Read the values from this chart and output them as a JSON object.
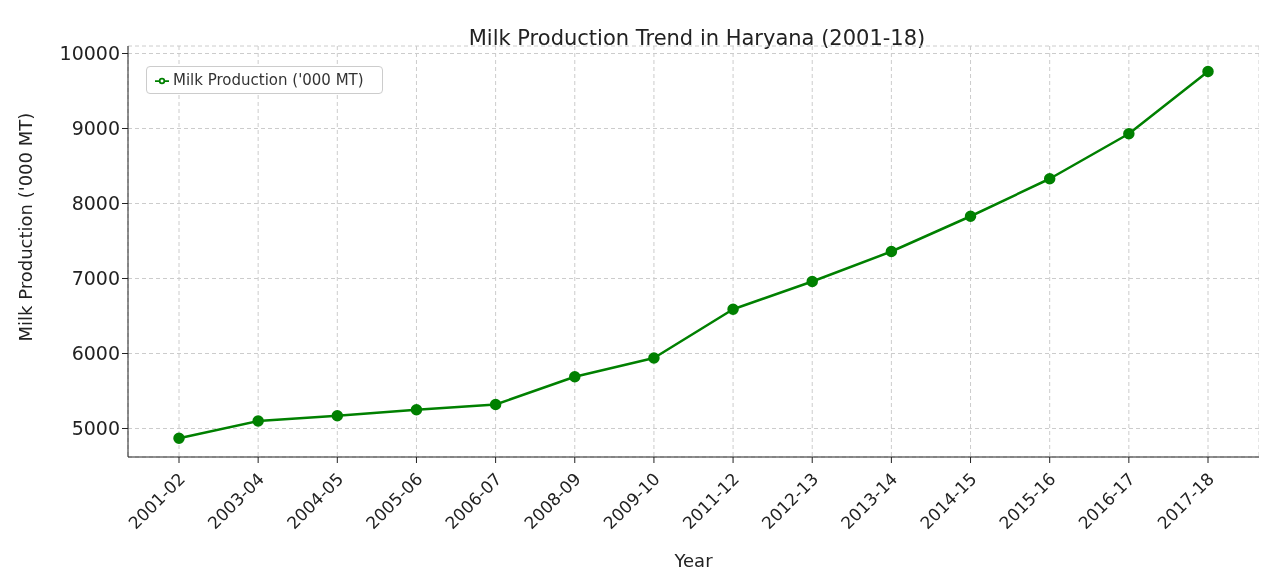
{
  "chart_data": {
    "type": "line",
    "title": "Milk Production Trend in Haryana (2001-18)",
    "xlabel": "Year",
    "ylabel": "Milk Production ('000 MT)",
    "categories": [
      "2001-02",
      "2003-04",
      "2004-05",
      "2005-06",
      "2006-07",
      "2008-09",
      "2009-10",
      "2011-12",
      "2012-13",
      "2013-14",
      "2014-15",
      "2015-16",
      "2016-17",
      "2017-18"
    ],
    "series": [
      {
        "name": "Milk Production ('000 MT)",
        "color": "#008000",
        "values": [
          4870,
          5100,
          5170,
          5250,
          5320,
          5690,
          5940,
          6590,
          6960,
          7360,
          7830,
          8330,
          8930,
          9760
        ]
      }
    ],
    "ylim": [
      4620,
      10100
    ],
    "yticks": [
      5000,
      6000,
      7000,
      8000,
      9000,
      10000
    ],
    "grid": true,
    "legend": "top left",
    "marker": "circle",
    "line_style": "solid"
  }
}
